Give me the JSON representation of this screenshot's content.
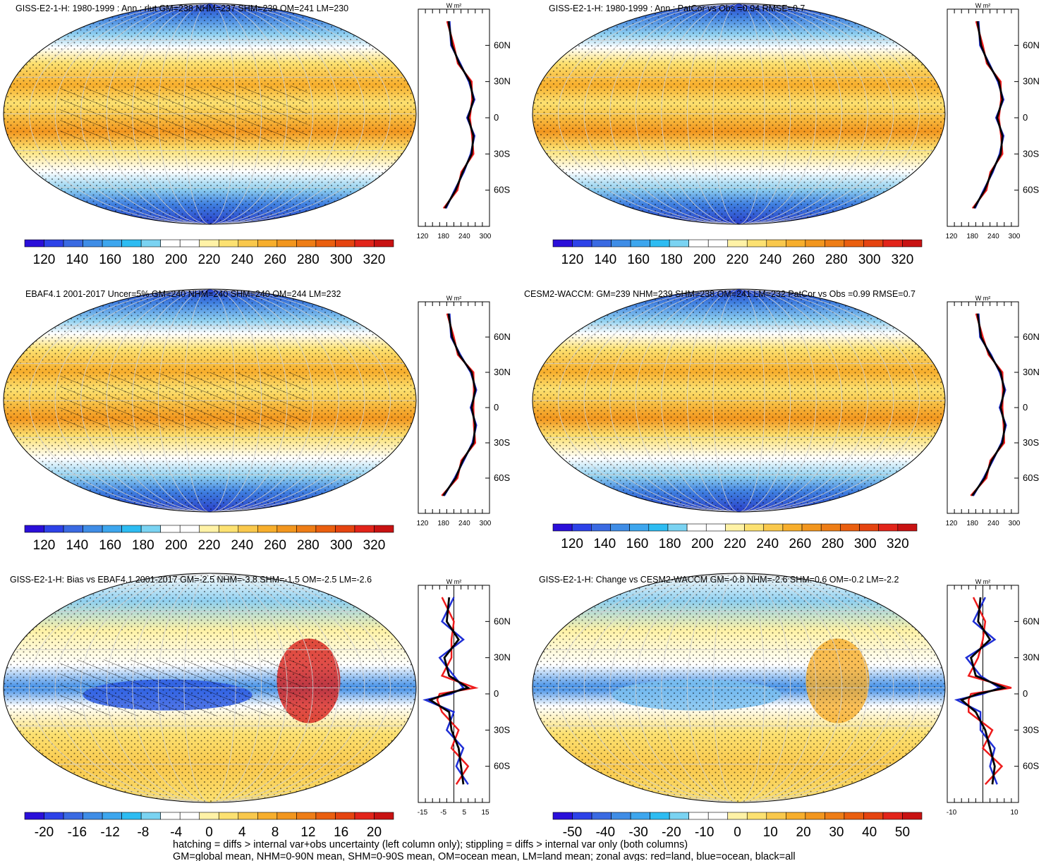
{
  "colors": {
    "land": "#ee1b1b",
    "ocean": "#1f2fd6",
    "all": "#000000",
    "abs_scale": [
      "#2a0fd9",
      "#2d42e8",
      "#3a6ae2",
      "#3f8de6",
      "#3da6ee",
      "#2dbcf2",
      "#7ad3f2",
      "#ffffff",
      "#ffffff",
      "#fff2a6",
      "#fce171",
      "#f9c84c",
      "#f7ae2c",
      "#f2961e",
      "#ee7d16",
      "#ea5f0f",
      "#e54410",
      "#e2241a",
      "#c81212"
    ],
    "diff_scale": [
      "#2a0fd9",
      "#2d42e8",
      "#3a6ae2",
      "#3f8de6",
      "#3da6ee",
      "#2dbcf2",
      "#7ad3f2",
      "#ffffff",
      "#ffffff",
      "#fff2a6",
      "#fce171",
      "#f9c84c",
      "#f7ae2c",
      "#f2961e",
      "#ee7d16",
      "#ea5f0f",
      "#e54410",
      "#e2241a",
      "#c81212"
    ]
  },
  "panels": [
    {
      "id": "p1",
      "title": "GISS-E2-1-H: 1980-1999 : Ann : rlut GM=238 NHM=237 SHM=239 OM=241 LM=230",
      "scale": "abs",
      "cb_labels": [
        "120",
        "140",
        "160",
        "180",
        "200",
        "220",
        "240",
        "260",
        "280",
        "300",
        "320"
      ],
      "zx": [
        "120",
        "180",
        "240",
        "300"
      ],
      "zunit": "W m²"
    },
    {
      "id": "p2",
      "title": "GISS-E2-1-H: 1980-1999 : Ann : PatCor vs Obs =0.94 RMSE=0.7",
      "scale": "abs",
      "cb_labels": [
        "120",
        "140",
        "160",
        "180",
        "200",
        "220",
        "240",
        "260",
        "280",
        "300",
        "320"
      ],
      "zx": [
        "120",
        "180",
        "240",
        "300"
      ],
      "zunit": "W m²"
    },
    {
      "id": "p3",
      "title": "EBAF4.1 2001-2017 Uncer=5% GM=240 NHM=240 SHM=240 OM=244 LM=232",
      "scale": "abs",
      "cb_labels": [
        "120",
        "140",
        "160",
        "180",
        "200",
        "220",
        "240",
        "260",
        "280",
        "300",
        "320"
      ],
      "zx": [
        "120",
        "180",
        "240",
        "300"
      ],
      "zunit": "W m²"
    },
    {
      "id": "p4",
      "title": "CESM2-WACCM: GM=239 NHM=239 SHM=238 OM=241 LM=232 PatCor vs Obs =0.99 RMSE=0.7",
      "scale": "abs",
      "cb_labels": [
        "120",
        "140",
        "160",
        "180",
        "200",
        "220",
        "240",
        "260",
        "280",
        "300",
        "320"
      ],
      "zx": [
        "120",
        "180",
        "240",
        "300"
      ],
      "zunit": "W m²"
    },
    {
      "id": "p5",
      "title": "GISS-E2-1-H: Bias vs EBAF4.1 2001-2017 GM=-2.5 NHM=-3.8 SHM=-1.5 OM=-2.5 LM=-2.6",
      "scale": "diff",
      "cb_labels": [
        "-20",
        "-16",
        "-12",
        "-8",
        "-4",
        "0",
        "4",
        "8",
        "12",
        "16",
        "20"
      ],
      "zx": [
        "-15",
        "-5",
        "5",
        "15"
      ],
      "zunit": "W m²"
    },
    {
      "id": "p6",
      "title": "GISS-E2-1-H: Change vs CESM2-WACCM GM=-0.8 NHM=-2.6 SHM=0.6 OM=-0.2 LM=-2.2",
      "scale": "diff",
      "cb_labels": [
        "-50",
        "-40",
        "-30",
        "-20",
        "-10",
        "0",
        "10",
        "20",
        "30",
        "40",
        "50"
      ],
      "zx": [
        "-10",
        "10"
      ],
      "zunit": "W m²"
    }
  ],
  "lat_labels": [
    "60N",
    "30N",
    "0",
    "30S",
    "60S"
  ],
  "footer": [
    "hatching = diffs > internal var+obs uncertainty (left column only); stippling = diffs > internal var only (both columns)",
    "GM=global mean, NHM=0-90N mean, SHM=0-90S mean, OM=ocean mean, LM=land mean; zonal avgs: red=land, blue=ocean, black=all"
  ],
  "chart_data": [
    {
      "type": "heatmap",
      "panel": "p1",
      "title": "GISS-E2-1-H: 1980-1999 : Ann : rlut GM=238 NHM=237 SHM=239 OM=241 LM=230",
      "colorbar": [
        120,
        140,
        160,
        180,
        200,
        220,
        240,
        260,
        280,
        300,
        320
      ],
      "zonal_mean": {
        "lat": [
          80,
          60,
          45,
          30,
          15,
          0,
          -15,
          -30,
          -45,
          -60,
          -75
        ],
        "all": [
          185,
          195,
          215,
          245,
          255,
          240,
          255,
          250,
          225,
          205,
          175
        ],
        "xlim": [
          100,
          300
        ]
      }
    },
    {
      "type": "heatmap",
      "panel": "p2",
      "title": "GISS-E2-1-H: 1980-1999 : Ann : PatCor vs Obs =0.94 RMSE=0.7",
      "colorbar": [
        120,
        140,
        160,
        180,
        200,
        220,
        240,
        260,
        280,
        300,
        320
      ],
      "zonal_mean": {
        "lat": [
          80,
          60,
          45,
          30,
          15,
          0,
          -15,
          -30,
          -45,
          -60,
          -75
        ],
        "all": [
          185,
          195,
          215,
          245,
          255,
          240,
          255,
          250,
          225,
          205,
          175
        ],
        "xlim": [
          100,
          300
        ]
      }
    },
    {
      "type": "heatmap",
      "panel": "p3",
      "title": "EBAF4.1 2001-2017 Uncer=5% GM=240 NHM=240 SHM=240 OM=244 LM=232",
      "colorbar": [
        120,
        140,
        160,
        180,
        200,
        220,
        240,
        260,
        280,
        300,
        320
      ],
      "zonal_mean": {
        "lat": [
          80,
          60,
          45,
          30,
          15,
          0,
          -15,
          -30,
          -45,
          -60,
          -75
        ],
        "all": [
          185,
          195,
          215,
          250,
          260,
          250,
          260,
          255,
          225,
          205,
          170
        ],
        "xlim": [
          100,
          300
        ]
      }
    },
    {
      "type": "heatmap",
      "panel": "p4",
      "title": "CESM2-WACCM: GM=239 NHM=239 SHM=238 OM=241 LM=232 PatCor vs Obs =0.99 RMSE=0.7",
      "colorbar": [
        120,
        140,
        160,
        180,
        200,
        220,
        240,
        260,
        280,
        300,
        320
      ],
      "zonal_mean": {
        "lat": [
          80,
          60,
          45,
          30,
          15,
          0,
          -15,
          -30,
          -45,
          -60,
          -75
        ],
        "all": [
          185,
          195,
          220,
          250,
          260,
          250,
          262,
          255,
          225,
          205,
          170
        ],
        "xlim": [
          100,
          300
        ]
      }
    },
    {
      "type": "heatmap",
      "panel": "p5",
      "title": "GISS-E2-1-H: Bias vs EBAF4.1 2001-2017 GM=-2.5 NHM=-3.8 SHM=-1.5 OM=-2.5 LM=-2.6",
      "colorbar": [
        -20,
        -16,
        -12,
        -8,
        -4,
        0,
        4,
        8,
        12,
        16,
        20
      ],
      "zonal_mean": {
        "lat": [
          80,
          60,
          45,
          30,
          15,
          5,
          0,
          -5,
          -15,
          -30,
          -45,
          -60,
          -75
        ],
        "all": [
          -2,
          -3,
          2,
          -4,
          -2,
          6,
          -3,
          -10,
          -2,
          -1,
          2,
          3,
          4
        ],
        "xlim": [
          -15,
          15
        ]
      }
    },
    {
      "type": "heatmap",
      "panel": "p6",
      "title": "GISS-E2-1-H: Change vs CESM2-WACCM GM=-0.8 NHM=-2.6 SHM=0.6 OM=-0.2 LM=-2.2",
      "colorbar": [
        -50,
        -40,
        -30,
        -20,
        -10,
        0,
        10,
        20,
        30,
        40,
        50
      ],
      "zonal_mean": {
        "lat": [
          80,
          60,
          45,
          30,
          15,
          5,
          0,
          -5,
          -15,
          -30,
          -45,
          -60,
          -75
        ],
        "all": [
          -1,
          -2,
          3,
          -5,
          -3,
          9,
          -2,
          -9,
          -3,
          1,
          3,
          5,
          4
        ],
        "xlim": [
          -15,
          15
        ]
      }
    }
  ]
}
